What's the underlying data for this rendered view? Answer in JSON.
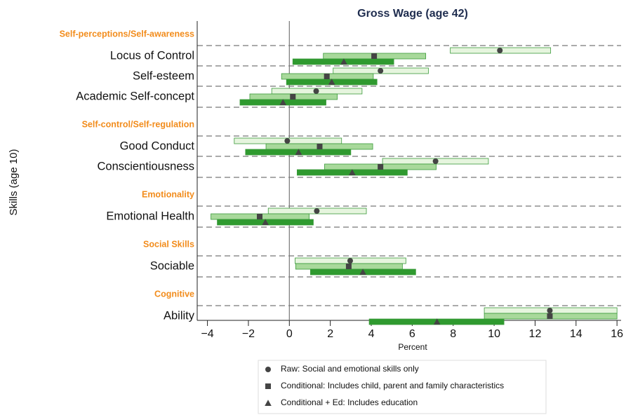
{
  "chart_data": {
    "type": "coefplot",
    "title": "Gross Wage (age 42)",
    "ylabel": "Skills (age 10)",
    "xlabel": "Percent",
    "xlim": [
      -4.5,
      16.2
    ],
    "xticks": [
      {
        "value": -4,
        "label": "−4"
      },
      {
        "value": -2,
        "label": "−2"
      },
      0,
      2,
      4,
      6,
      8,
      10,
      12,
      14,
      16
    ],
    "xline": 0,
    "groups": [
      {
        "name": "Self-perceptions/Self-awareness",
        "categories": [
          "Locus of Control",
          "Self-esteem",
          "Academic Self-concept"
        ]
      },
      {
        "name": "Self-control/Self-regulation",
        "categories": [
          "Good Conduct",
          "Conscientiousness"
        ]
      },
      {
        "name": "Emotionality",
        "categories": [
          "Emotional Health"
        ]
      },
      {
        "name": "Social Skills",
        "categories": [
          "Sociable"
        ]
      },
      {
        "name": "Cognitive",
        "categories": [
          "Ability"
        ]
      }
    ],
    "series": [
      {
        "name": "Raw: Social and emotional skills only",
        "marker": "circle",
        "color": "#e6f5de",
        "values": [
          10.28,
          4.45,
          1.31,
          -0.1,
          7.14,
          1.34,
          2.97,
          12.72
        ],
        "low": [
          7.86,
          2.14,
          -0.86,
          -2.69,
          4.55,
          -1.03,
          0.28,
          9.52
        ],
        "high": [
          12.76,
          6.79,
          3.55,
          2.55,
          9.72,
          3.76,
          5.69,
          16.0
        ]
      },
      {
        "name": "Conditional: Includes child, parent and family characteristics",
        "marker": "square",
        "color": "#a8d99b",
        "values": [
          4.14,
          1.83,
          0.17,
          1.48,
          4.45,
          -1.45,
          2.9,
          12.72
        ],
        "low": [
          1.66,
          -0.38,
          -1.93,
          -1.14,
          1.72,
          -3.83,
          0.31,
          9.52
        ],
        "high": [
          6.66,
          4.1,
          2.34,
          4.07,
          7.17,
          0.97,
          5.52,
          16.0
        ]
      },
      {
        "name": "Conditional + Ed: Includes education",
        "marker": "triangle",
        "color": "#2f9a2f",
        "values": [
          2.66,
          2.07,
          -0.31,
          0.45,
          3.07,
          -1.17,
          3.59,
          7.21
        ],
        "low": [
          0.17,
          -0.14,
          -2.41,
          -2.14,
          0.38,
          -3.52,
          1.03,
          3.9
        ],
        "high": [
          5.1,
          4.28,
          1.79,
          3.0,
          5.76,
          1.17,
          6.17,
          10.48
        ]
      }
    ]
  }
}
